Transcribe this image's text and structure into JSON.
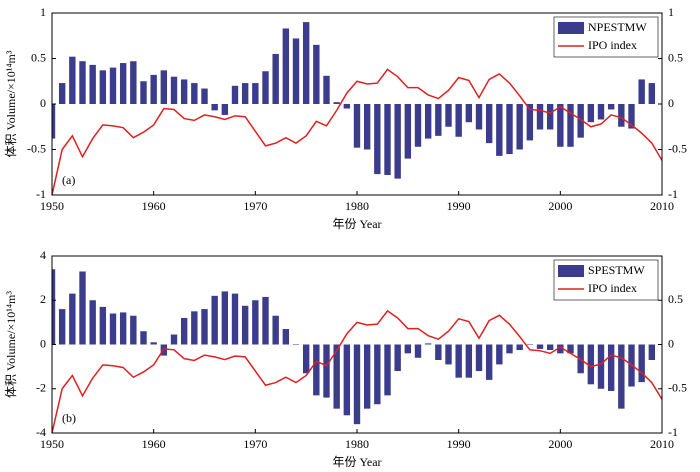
{
  "chart_data": [
    {
      "type": "bar",
      "panel_label": "(a)",
      "xlabel": "年份 Year",
      "ylabel": "体积 Volume/×10¹⁴m³",
      "xlim": [
        1950,
        2010
      ],
      "xticks": [
        1950,
        1960,
        1970,
        1980,
        1990,
        2000,
        2010
      ],
      "ylim": [
        -1,
        1
      ],
      "yticks": [
        -1,
        -0.5,
        0,
        0.5,
        1
      ],
      "y2lim": [
        -1,
        1
      ],
      "y2ticks": [
        -1,
        -0.5,
        0,
        0.5,
        1
      ],
      "legend": "upper right",
      "series": [
        {
          "name": "NPESTMW",
          "type": "bar",
          "color": "#3b3d8c",
          "x": [
            1950,
            1951,
            1952,
            1953,
            1954,
            1955,
            1956,
            1957,
            1958,
            1959,
            1960,
            1961,
            1962,
            1963,
            1964,
            1965,
            1966,
            1967,
            1968,
            1969,
            1970,
            1971,
            1972,
            1973,
            1974,
            1975,
            1976,
            1977,
            1978,
            1979,
            1980,
            1981,
            1982,
            1983,
            1984,
            1985,
            1986,
            1987,
            1988,
            1989,
            1990,
            1991,
            1992,
            1993,
            1994,
            1995,
            1996,
            1997,
            1998,
            1999,
            2000,
            2001,
            2002,
            2003,
            2004,
            2005,
            2006,
            2007,
            2008,
            2009
          ],
          "values": [
            -0.38,
            0.23,
            0.52,
            0.47,
            0.43,
            0.37,
            0.4,
            0.45,
            0.47,
            0.25,
            0.32,
            0.37,
            0.3,
            0.27,
            0.23,
            0.17,
            -0.07,
            -0.12,
            0.2,
            0.23,
            0.23,
            0.36,
            0.55,
            0.83,
            0.72,
            0.9,
            0.65,
            0.31,
            0.02,
            -0.05,
            -0.48,
            -0.5,
            -0.77,
            -0.78,
            -0.82,
            -0.6,
            -0.47,
            -0.38,
            -0.35,
            -0.25,
            -0.36,
            -0.2,
            -0.28,
            -0.43,
            -0.57,
            -0.55,
            -0.5,
            -0.4,
            -0.28,
            -0.28,
            -0.47,
            -0.47,
            -0.37,
            -0.2,
            -0.17,
            -0.06,
            -0.25,
            -0.27,
            0.27,
            0.23
          ]
        },
        {
          "name": "IPO index",
          "type": "line",
          "axis": "y2",
          "color": "#e02020",
          "x": [
            1950,
            1951,
            1952,
            1953,
            1954,
            1955,
            1956,
            1957,
            1958,
            1959,
            1960,
            1961,
            1962,
            1963,
            1964,
            1965,
            1966,
            1967,
            1968,
            1969,
            1970,
            1971,
            1972,
            1973,
            1974,
            1975,
            1976,
            1977,
            1978,
            1979,
            1980,
            1981,
            1982,
            1983,
            1984,
            1985,
            1986,
            1987,
            1988,
            1989,
            1990,
            1991,
            1992,
            1993,
            1994,
            1995,
            1996,
            1997,
            1998,
            1999,
            2000,
            2001,
            2002,
            2003,
            2004,
            2005,
            2006,
            2007,
            2008,
            2009,
            2010
          ],
          "values": [
            -1,
            -0.5,
            -0.35,
            -0.58,
            -0.38,
            -0.23,
            -0.24,
            -0.26,
            -0.37,
            -0.31,
            -0.23,
            -0.05,
            -0.06,
            -0.16,
            -0.18,
            -0.12,
            -0.14,
            -0.17,
            -0.13,
            -0.14,
            -0.3,
            -0.46,
            -0.43,
            -0.37,
            -0.43,
            -0.35,
            -0.19,
            -0.24,
            -0.07,
            0.12,
            0.25,
            0.22,
            0.23,
            0.38,
            0.3,
            0.18,
            0.18,
            0.1,
            0.06,
            0.15,
            0.29,
            0.26,
            0.07,
            0.27,
            0.33,
            0.23,
            0.09,
            -0.06,
            -0.07,
            -0.1,
            -0.03,
            -0.1,
            -0.17,
            -0.25,
            -0.22,
            -0.12,
            -0.15,
            -0.23,
            -0.32,
            -0.43,
            -0.62
          ]
        }
      ]
    },
    {
      "type": "bar",
      "panel_label": "(b)",
      "xlabel": "年份 Year",
      "ylabel": "体积 Volume/×10¹⁴m³",
      "xlim": [
        1950,
        2010
      ],
      "xticks": [
        1950,
        1960,
        1970,
        1980,
        1990,
        2000,
        2010
      ],
      "ylim": [
        -4,
        4
      ],
      "yticks": [
        -4,
        -2,
        0,
        2,
        4
      ],
      "y2lim": [
        -1,
        1
      ],
      "y2ticks": [
        -1,
        -0.5,
        0,
        0.5
      ],
      "legend": "upper right",
      "series": [
        {
          "name": "SPESTMW",
          "type": "bar",
          "color": "#3b3d8c",
          "x": [
            1950,
            1951,
            1952,
            1953,
            1954,
            1955,
            1956,
            1957,
            1958,
            1959,
            1960,
            1961,
            1962,
            1963,
            1964,
            1965,
            1966,
            1967,
            1968,
            1969,
            1970,
            1971,
            1972,
            1973,
            1974,
            1975,
            1976,
            1977,
            1978,
            1979,
            1980,
            1981,
            1982,
            1983,
            1984,
            1985,
            1986,
            1987,
            1988,
            1989,
            1990,
            1991,
            1992,
            1993,
            1994,
            1995,
            1996,
            1997,
            1998,
            1999,
            2000,
            2001,
            2002,
            2003,
            2004,
            2005,
            2006,
            2007,
            2008,
            2009
          ],
          "values": [
            3.4,
            1.6,
            2.3,
            3.3,
            2.0,
            1.7,
            1.4,
            1.45,
            1.3,
            0.6,
            0.1,
            -0.5,
            0.45,
            1.2,
            1.5,
            1.6,
            2.2,
            2.4,
            2.3,
            1.75,
            2.0,
            2.15,
            1.3,
            0.7,
            0.0,
            -1.3,
            -2.3,
            -2.4,
            -2.9,
            -3.2,
            -3.6,
            -2.9,
            -2.7,
            -2.3,
            -1.2,
            -0.4,
            -0.6,
            0.05,
            -0.7,
            -0.9,
            -1.5,
            -1.5,
            -1.2,
            -1.6,
            -0.9,
            -0.4,
            -0.25,
            0.0,
            -0.2,
            -0.25,
            -0.4,
            -0.4,
            -1.3,
            -1.8,
            -2.0,
            -2.1,
            -2.9,
            -1.9,
            -1.7,
            -0.7
          ]
        },
        {
          "name": "IPO index",
          "type": "line",
          "axis": "y2",
          "color": "#e02020",
          "x": [
            1950,
            1951,
            1952,
            1953,
            1954,
            1955,
            1956,
            1957,
            1958,
            1959,
            1960,
            1961,
            1962,
            1963,
            1964,
            1965,
            1966,
            1967,
            1968,
            1969,
            1970,
            1971,
            1972,
            1973,
            1974,
            1975,
            1976,
            1977,
            1978,
            1979,
            1980,
            1981,
            1982,
            1983,
            1984,
            1985,
            1986,
            1987,
            1988,
            1989,
            1990,
            1991,
            1992,
            1993,
            1994,
            1995,
            1996,
            1997,
            1998,
            1999,
            2000,
            2001,
            2002,
            2003,
            2004,
            2005,
            2006,
            2007,
            2008,
            2009,
            2010
          ],
          "values": [
            -1,
            -0.5,
            -0.35,
            -0.58,
            -0.38,
            -0.23,
            -0.24,
            -0.26,
            -0.37,
            -0.31,
            -0.23,
            -0.05,
            -0.06,
            -0.16,
            -0.18,
            -0.12,
            -0.14,
            -0.17,
            -0.13,
            -0.14,
            -0.3,
            -0.46,
            -0.43,
            -0.37,
            -0.43,
            -0.35,
            -0.19,
            -0.24,
            -0.07,
            0.12,
            0.25,
            0.22,
            0.23,
            0.38,
            0.3,
            0.18,
            0.18,
            0.1,
            0.06,
            0.15,
            0.29,
            0.26,
            0.07,
            0.27,
            0.33,
            0.23,
            0.09,
            -0.06,
            -0.07,
            -0.1,
            -0.03,
            -0.1,
            -0.17,
            -0.25,
            -0.22,
            -0.12,
            -0.15,
            -0.23,
            -0.32,
            -0.43,
            -0.62
          ]
        }
      ]
    }
  ]
}
